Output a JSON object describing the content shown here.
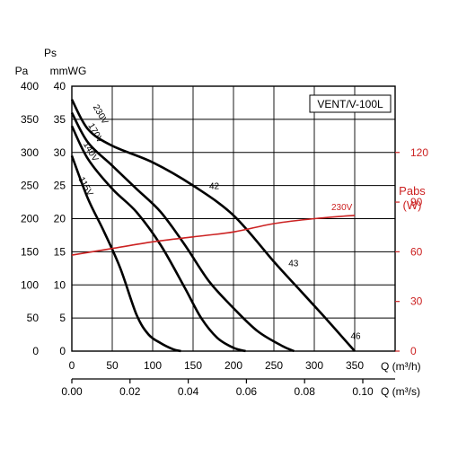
{
  "chart_data": {
    "type": "line",
    "model_label": "VENT/V-100L",
    "axes": {
      "pa_title": "Pa",
      "ps_title_line1": "Ps",
      "ps_title_line2": "mmWG",
      "pabs_title_line1": "Pabs",
      "pabs_title_line2": "(W)",
      "q_m3h_title": "Q (m³/h)",
      "q_m3s_title": "Q (m³/s)",
      "pa_ticks": [
        0,
        50,
        100,
        150,
        200,
        250,
        300,
        350,
        400
      ],
      "mmwg_ticks": [
        0,
        5,
        10,
        15,
        20,
        25,
        30,
        35,
        40
      ],
      "pabs_ticks": [
        0,
        30,
        60,
        90,
        120
      ],
      "q_m3h_ticks": [
        0,
        50,
        100,
        150,
        200,
        250,
        300,
        350
      ],
      "q_m3s_ticks": [
        "0.00",
        "0.02",
        "0.04",
        "0.06",
        "0.08",
        "0.10"
      ],
      "q_m3s_values": [
        0,
        0.02,
        0.04,
        0.06,
        0.08,
        0.1
      ],
      "x_range_m3h": [
        0,
        400
      ],
      "y_range_pa": [
        0,
        400
      ],
      "pabs_range_w": [
        0,
        160
      ],
      "grid": true
    },
    "series": [
      {
        "name": "230V",
        "color": "#000000",
        "x": [
          0,
          20,
          50,
          100,
          150,
          200,
          250,
          280,
          310,
          350
        ],
        "y": [
          380,
          335,
          310,
          285,
          250,
          205,
          135,
          95,
          55,
          0
        ]
      },
      {
        "name": "170V",
        "color": "#000000",
        "x": [
          0,
          20,
          50,
          80,
          110,
          140,
          170,
          200,
          230,
          260,
          275
        ],
        "y": [
          360,
          315,
          280,
          245,
          210,
          160,
          105,
          65,
          30,
          8,
          0
        ]
      },
      {
        "name": "140V",
        "color": "#000000",
        "x": [
          0,
          20,
          50,
          80,
          110,
          140,
          160,
          180,
          200,
          215
        ],
        "y": [
          340,
          290,
          245,
          210,
          160,
          95,
          50,
          20,
          5,
          0
        ]
      },
      {
        "name": "115V",
        "color": "#000000",
        "x": [
          0,
          20,
          40,
          60,
          80,
          95,
          110,
          125,
          135
        ],
        "y": [
          295,
          230,
          180,
          125,
          55,
          25,
          12,
          3,
          0
        ]
      }
    ],
    "curve_labels": [
      {
        "text": "42",
        "q": 170,
        "pa": 245
      },
      {
        "text": "43",
        "q": 268,
        "pa": 128
      },
      {
        "text": "46",
        "q": 345,
        "pa": 18
      }
    ],
    "power_series": {
      "name": "230V",
      "color": "#cc2222",
      "x": [
        0,
        50,
        100,
        150,
        200,
        250,
        300,
        350
      ],
      "y_w": [
        58,
        62,
        66,
        69,
        72,
        77,
        80,
        82
      ]
    }
  }
}
